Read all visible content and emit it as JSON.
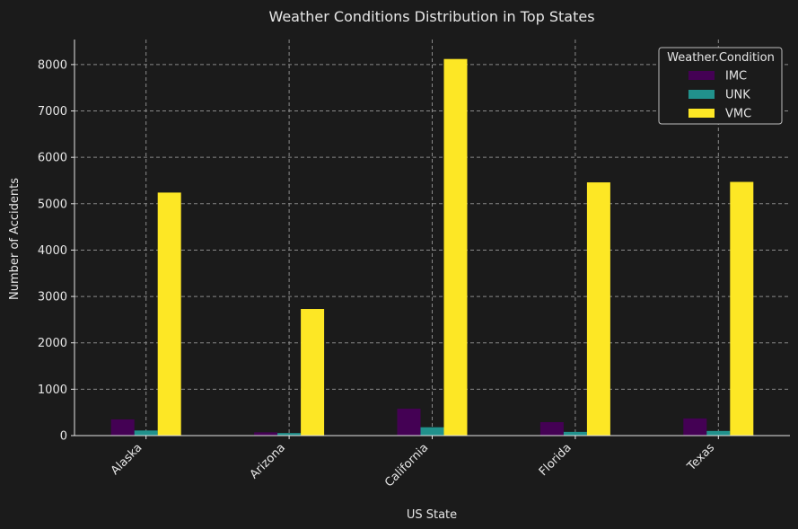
{
  "chart_data": {
    "type": "bar",
    "title": "Weather Conditions Distribution in Top States",
    "xlabel": "US State",
    "ylabel": "Number of Accidents",
    "categories": [
      "Alaska",
      "Arizona",
      "California",
      "Florida",
      "Texas"
    ],
    "series": [
      {
        "name": "IMC",
        "color": "#440154",
        "values": [
          350,
          70,
          580,
          290,
          370
        ]
      },
      {
        "name": "UNK",
        "color": "#21918c",
        "values": [
          110,
          55,
          180,
          80,
          100
        ]
      },
      {
        "name": "VMC",
        "color": "#fde725",
        "values": [
          5240,
          2730,
          8120,
          5460,
          5470
        ]
      }
    ],
    "ylim": [
      0,
      8540
    ],
    "yticks": [
      0,
      1000,
      2000,
      3000,
      4000,
      5000,
      6000,
      7000,
      8000
    ],
    "grid": true,
    "legend": {
      "title": "Weather.Condition",
      "position": "top-right"
    }
  }
}
